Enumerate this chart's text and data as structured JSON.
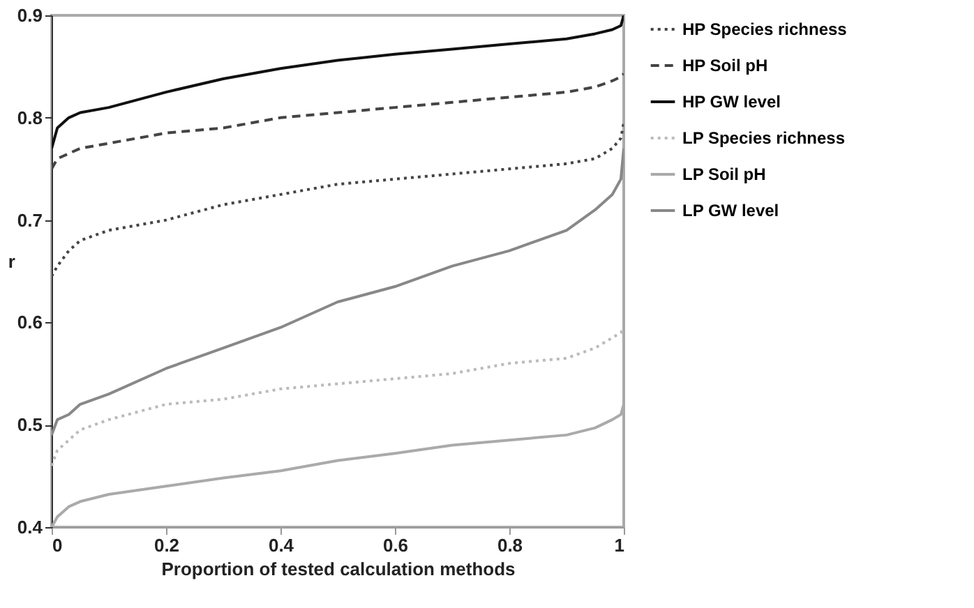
{
  "chart_data": {
    "type": "line",
    "xlabel": "Proportion of tested calculation methods",
    "ylabel": "r",
    "x": [
      0,
      0.01,
      0.03,
      0.05,
      0.1,
      0.2,
      0.3,
      0.4,
      0.5,
      0.6,
      0.7,
      0.8,
      0.9,
      0.95,
      0.98,
      0.995,
      1
    ],
    "xlim": [
      0,
      1
    ],
    "xticks": [
      0,
      0.2,
      0.4,
      0.6,
      0.8,
      1
    ],
    "ylim": [
      0.4,
      0.9
    ],
    "yticks": [
      0.4,
      0.5,
      0.6,
      0.7,
      0.8,
      0.9
    ],
    "grid": false,
    "legend": "right",
    "marker": "none",
    "series": [
      {
        "name": "HP Species richness",
        "color": "#444444",
        "line_style": "dotted",
        "values": [
          0.645,
          0.655,
          0.67,
          0.68,
          0.69,
          0.7,
          0.715,
          0.725,
          0.735,
          0.74,
          0.745,
          0.75,
          0.755,
          0.76,
          0.77,
          0.78,
          0.795
        ]
      },
      {
        "name": "HP Soil pH",
        "color": "#444444",
        "line_style": "dashed",
        "values": [
          0.75,
          0.76,
          0.765,
          0.77,
          0.775,
          0.785,
          0.79,
          0.8,
          0.805,
          0.81,
          0.815,
          0.82,
          0.825,
          0.83,
          0.836,
          0.84,
          0.843
        ]
      },
      {
        "name": "HP GW level",
        "color": "#111111",
        "line_style": "solid",
        "values": [
          0.77,
          0.79,
          0.8,
          0.805,
          0.81,
          0.825,
          0.838,
          0.848,
          0.856,
          0.862,
          0.867,
          0.872,
          0.877,
          0.882,
          0.886,
          0.89,
          0.9
        ]
      },
      {
        "name": "LP Species richness",
        "color": "#bbbbbb",
        "line_style": "dotted",
        "values": [
          0.46,
          0.475,
          0.485,
          0.495,
          0.505,
          0.52,
          0.525,
          0.535,
          0.54,
          0.545,
          0.55,
          0.56,
          0.565,
          0.575,
          0.585,
          0.59,
          0.595
        ]
      },
      {
        "name": "LP Soil pH",
        "color": "#aaaaaa",
        "line_style": "solid",
        "values": [
          0.4,
          0.41,
          0.42,
          0.425,
          0.432,
          0.44,
          0.448,
          0.455,
          0.465,
          0.472,
          0.48,
          0.485,
          0.49,
          0.497,
          0.505,
          0.51,
          0.52
        ]
      },
      {
        "name": "LP GW level",
        "color": "#888888",
        "line_style": "solid",
        "values": [
          0.49,
          0.505,
          0.51,
          0.52,
          0.53,
          0.555,
          0.575,
          0.595,
          0.62,
          0.635,
          0.655,
          0.67,
          0.69,
          0.71,
          0.725,
          0.74,
          0.77
        ]
      }
    ]
  }
}
